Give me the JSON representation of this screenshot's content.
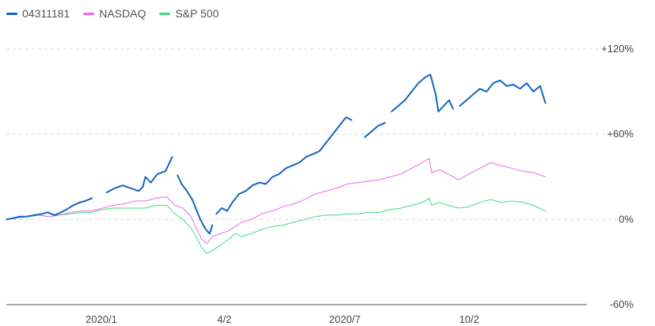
{
  "chart_data": {
    "type": "line",
    "title": "",
    "xlabel": "",
    "ylabel": "",
    "legend_position": "top-left",
    "grid": "horizontal-dashed",
    "ylim": [
      -60,
      120
    ],
    "yticks": [
      {
        "value": 120,
        "label": "+120%"
      },
      {
        "value": 60,
        "label": "+60%"
      },
      {
        "value": 0,
        "label": "0%"
      },
      {
        "value": -60,
        "label": "-60%"
      }
    ],
    "xlim": [
      "2019-10-22",
      "2020-12-29"
    ],
    "xticks": [
      {
        "date": "2020-01-01",
        "label": "2020/1"
      },
      {
        "date": "2020-04-02",
        "label": "4/2"
      },
      {
        "date": "2020-07-01",
        "label": "2020/7"
      },
      {
        "date": "2020-10-02",
        "label": "10/2"
      }
    ],
    "series": [
      {
        "name": "04311181",
        "color": "#1565c0",
        "stroke_width": 2,
        "points": [
          [
            "2019-10-22",
            0
          ],
          [
            "2019-10-28",
            1
          ],
          [
            "2019-11-01",
            2
          ],
          [
            "2019-11-06",
            2
          ],
          [
            "2019-11-12",
            3
          ],
          [
            "2019-11-18",
            4
          ],
          [
            "2019-11-22",
            5
          ],
          [
            "2019-11-27",
            3
          ],
          [
            "2019-12-02",
            5
          ],
          [
            "2019-12-06",
            7
          ],
          [
            "2019-12-11",
            10
          ],
          [
            "2019-12-16",
            12
          ],
          [
            "2019-12-20",
            13
          ],
          [
            "2019-12-25",
            15
          ],
          null,
          [
            "2020-01-05",
            19
          ],
          [
            "2020-01-11",
            22
          ],
          [
            "2020-01-17",
            24
          ],
          [
            "2020-01-23",
            22
          ],
          [
            "2020-01-29",
            20
          ],
          [
            "2020-02-01",
            23
          ],
          [
            "2020-02-03",
            30
          ],
          [
            "2020-02-07",
            26
          ],
          [
            "2020-02-12",
            32
          ],
          [
            "2020-02-18",
            34
          ],
          [
            "2020-02-23",
            44
          ],
          null,
          [
            "2020-02-27",
            31
          ],
          [
            "2020-03-01",
            25
          ],
          [
            "2020-03-05",
            20
          ],
          [
            "2020-03-09",
            14
          ],
          [
            "2020-03-12",
            7
          ],
          [
            "2020-03-15",
            0
          ],
          [
            "2020-03-19",
            -7
          ],
          [
            "2020-03-22",
            -10
          ],
          [
            "2020-03-24",
            -4
          ],
          null,
          [
            "2020-03-27",
            4
          ],
          [
            "2020-03-31",
            8
          ],
          [
            "2020-04-04",
            6
          ],
          [
            "2020-04-08",
            12
          ],
          [
            "2020-04-13",
            18
          ],
          [
            "2020-04-18",
            20
          ],
          [
            "2020-04-23",
            24
          ],
          [
            "2020-04-28",
            26
          ],
          [
            "2020-05-03",
            25
          ],
          [
            "2020-05-08",
            30
          ],
          [
            "2020-05-13",
            32
          ],
          [
            "2020-05-18",
            36
          ],
          [
            "2020-05-23",
            38
          ],
          [
            "2020-05-28",
            40
          ],
          [
            "2020-06-02",
            44
          ],
          [
            "2020-06-07",
            46
          ],
          [
            "2020-06-12",
            48
          ],
          [
            "2020-06-17",
            54
          ],
          [
            "2020-06-22",
            60
          ],
          [
            "2020-06-27",
            66
          ],
          [
            "2020-07-02",
            72
          ],
          [
            "2020-07-06",
            70
          ],
          null,
          [
            "2020-07-16",
            58
          ],
          [
            "2020-07-21",
            62
          ],
          [
            "2020-07-26",
            66
          ],
          [
            "2020-07-31",
            68
          ],
          null,
          [
            "2020-08-05",
            76
          ],
          [
            "2020-08-10",
            80
          ],
          [
            "2020-08-15",
            84
          ],
          [
            "2020-08-20",
            90
          ],
          [
            "2020-08-25",
            96
          ],
          [
            "2020-08-30",
            100
          ],
          [
            "2020-09-03",
            102
          ],
          [
            "2020-09-07",
            88
          ],
          [
            "2020-09-09",
            76
          ],
          [
            "2020-09-13",
            80
          ],
          [
            "2020-09-17",
            84
          ],
          [
            "2020-09-20",
            78
          ],
          null,
          [
            "2020-09-25",
            80
          ],
          [
            "2020-09-30",
            84
          ],
          [
            "2020-10-05",
            88
          ],
          [
            "2020-10-10",
            92
          ],
          [
            "2020-10-15",
            90
          ],
          [
            "2020-10-20",
            96
          ],
          [
            "2020-10-25",
            98
          ],
          [
            "2020-10-30",
            94
          ],
          [
            "2020-11-04",
            95
          ],
          [
            "2020-11-09",
            92
          ],
          [
            "2020-11-14",
            96
          ],
          [
            "2020-11-19",
            90
          ],
          [
            "2020-11-24",
            94
          ],
          [
            "2020-11-28",
            82
          ]
        ]
      },
      {
        "name": "NASDAQ",
        "color": "#ee66ee",
        "stroke_width": 1,
        "points": [
          [
            "2019-10-22",
            0
          ],
          [
            "2019-10-30",
            1
          ],
          [
            "2019-11-07",
            2
          ],
          [
            "2019-11-15",
            3
          ],
          [
            "2019-11-23",
            2
          ],
          [
            "2019-12-01",
            3
          ],
          [
            "2019-12-09",
            5
          ],
          [
            "2019-12-17",
            6
          ],
          [
            "2019-12-25",
            6
          ],
          [
            "2020-01-02",
            8
          ],
          [
            "2020-01-10",
            10
          ],
          [
            "2020-01-18",
            11
          ],
          [
            "2020-01-26",
            13
          ],
          [
            "2020-02-03",
            13
          ],
          [
            "2020-02-11",
            15
          ],
          [
            "2020-02-19",
            16
          ],
          [
            "2020-02-25",
            10
          ],
          [
            "2020-03-02",
            8
          ],
          [
            "2020-03-08",
            2
          ],
          [
            "2020-03-12",
            -6
          ],
          [
            "2020-03-16",
            -14
          ],
          [
            "2020-03-20",
            -17
          ],
          [
            "2020-03-24",
            -12
          ],
          [
            "2020-03-30",
            -10
          ],
          [
            "2020-04-05",
            -8
          ],
          [
            "2020-04-10",
            -5
          ],
          [
            "2020-04-15",
            -2
          ],
          [
            "2020-04-22",
            0
          ],
          [
            "2020-04-30",
            4
          ],
          [
            "2020-05-08",
            6
          ],
          [
            "2020-05-16",
            9
          ],
          [
            "2020-05-24",
            11
          ],
          [
            "2020-06-01",
            14
          ],
          [
            "2020-06-09",
            18
          ],
          [
            "2020-06-17",
            20
          ],
          [
            "2020-06-25",
            22
          ],
          [
            "2020-07-03",
            25
          ],
          [
            "2020-07-11",
            26
          ],
          [
            "2020-07-19",
            27
          ],
          [
            "2020-07-27",
            28
          ],
          [
            "2020-08-04",
            30
          ],
          [
            "2020-08-12",
            32
          ],
          [
            "2020-08-20",
            36
          ],
          [
            "2020-08-28",
            40
          ],
          [
            "2020-09-02",
            43
          ],
          [
            "2020-09-04",
            33
          ],
          [
            "2020-09-10",
            35
          ],
          [
            "2020-09-16",
            32
          ],
          [
            "2020-09-24",
            28
          ],
          [
            "2020-10-02",
            32
          ],
          [
            "2020-10-10",
            36
          ],
          [
            "2020-10-18",
            40
          ],
          [
            "2020-10-26",
            38
          ],
          [
            "2020-11-03",
            36
          ],
          [
            "2020-11-11",
            34
          ],
          [
            "2020-11-19",
            33
          ],
          [
            "2020-11-28",
            30
          ]
        ]
      },
      {
        "name": "S&P 500",
        "color": "#3ddc84",
        "stroke_width": 1,
        "points": [
          [
            "2019-10-22",
            0
          ],
          [
            "2019-10-30",
            1
          ],
          [
            "2019-11-07",
            2
          ],
          [
            "2019-11-15",
            3
          ],
          [
            "2019-11-23",
            2
          ],
          [
            "2019-12-01",
            3
          ],
          [
            "2019-12-09",
            4
          ],
          [
            "2019-12-17",
            5
          ],
          [
            "2019-12-25",
            5
          ],
          [
            "2020-01-02",
            7
          ],
          [
            "2020-01-10",
            8
          ],
          [
            "2020-01-18",
            8
          ],
          [
            "2020-01-26",
            8
          ],
          [
            "2020-02-03",
            8
          ],
          [
            "2020-02-11",
            10
          ],
          [
            "2020-02-19",
            10
          ],
          [
            "2020-02-25",
            4
          ],
          [
            "2020-03-02",
            0
          ],
          [
            "2020-03-08",
            -6
          ],
          [
            "2020-03-12",
            -12
          ],
          [
            "2020-03-16",
            -20
          ],
          [
            "2020-03-20",
            -24
          ],
          [
            "2020-03-24",
            -22
          ],
          [
            "2020-03-30",
            -18
          ],
          [
            "2020-04-05",
            -14
          ],
          [
            "2020-04-10",
            -10
          ],
          [
            "2020-04-15",
            -12
          ],
          [
            "2020-04-22",
            -10
          ],
          [
            "2020-04-30",
            -7
          ],
          [
            "2020-05-08",
            -5
          ],
          [
            "2020-05-16",
            -4
          ],
          [
            "2020-05-24",
            -2
          ],
          [
            "2020-06-01",
            0
          ],
          [
            "2020-06-09",
            2
          ],
          [
            "2020-06-17",
            3
          ],
          [
            "2020-06-25",
            3
          ],
          [
            "2020-07-03",
            4
          ],
          [
            "2020-07-11",
            4
          ],
          [
            "2020-07-19",
            5
          ],
          [
            "2020-07-27",
            5
          ],
          [
            "2020-08-04",
            7
          ],
          [
            "2020-08-12",
            8
          ],
          [
            "2020-08-20",
            10
          ],
          [
            "2020-08-28",
            12
          ],
          [
            "2020-09-02",
            15
          ],
          [
            "2020-09-04",
            10
          ],
          [
            "2020-09-10",
            12
          ],
          [
            "2020-09-16",
            10
          ],
          [
            "2020-09-24",
            8
          ],
          [
            "2020-10-02",
            9
          ],
          [
            "2020-10-10",
            12
          ],
          [
            "2020-10-18",
            14
          ],
          [
            "2020-10-26",
            12
          ],
          [
            "2020-11-03",
            13
          ],
          [
            "2020-11-11",
            12
          ],
          [
            "2020-11-19",
            10
          ],
          [
            "2020-11-28",
            6
          ]
        ]
      }
    ]
  }
}
